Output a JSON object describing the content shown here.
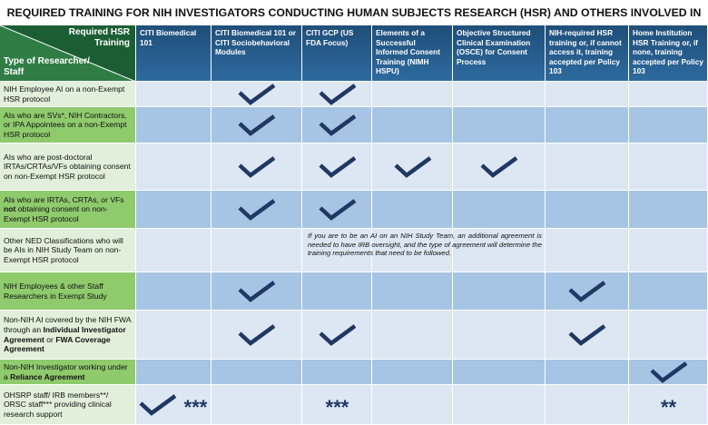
{
  "title": "REQUIRED TRAINING FOR NIH INVESTIGATORS CONDUCTING HUMAN SUBJECTS RESEARCH (HSR) AND OTHERS INVOLVED IN NIH HSR",
  "header": {
    "corner_top": "Required HSR Training",
    "corner_bottom": "Type of Researcher/ Staff",
    "columns": [
      "CITI Biomedical 101",
      "CITI Biomedical 101 or CITI Sociobehavioral Modules",
      "CITI GCP (US FDA Focus)",
      "Elements of a Successful Informed Consent Training (NIMH HSPU)",
      "Objective Structured Clinical Examination (OSCE) for Consent Process",
      "NIH-required HSR training or, if cannot access it, training accepted per Policy 103",
      "Home Institution HSR Training or, if none, training accepted per Policy 103"
    ]
  },
  "rows": [
    {
      "label": [
        {
          "text": "NIH Employee AI on a non-Exempt HSR protocol"
        }
      ],
      "checks": [
        false,
        true,
        true,
        false,
        false,
        false,
        false
      ]
    },
    {
      "label": [
        {
          "text": "AIs who are SVs*, NIH Contractors, or IPA Appointees on a non-Exempt HSR protocol"
        }
      ],
      "checks": [
        false,
        true,
        true,
        false,
        false,
        false,
        false
      ]
    },
    {
      "label": [
        {
          "text": "AIs who are post-doctoral IRTAs/CRTAs/VFs obtaining consent on non-Exempt HSR protocol"
        }
      ],
      "checks": [
        false,
        true,
        true,
        true,
        true,
        false,
        false
      ]
    },
    {
      "label": [
        {
          "text": "AIs who are IRTAs, CRTAs, or VFs "
        },
        {
          "text": "not",
          "bold": true
        },
        {
          "text": " obtaining consent on non-Exempt HSR protocol"
        }
      ],
      "checks": [
        false,
        true,
        true,
        false,
        false,
        false,
        false
      ]
    },
    {
      "label": [
        {
          "text": "Other NED Classifications who will be AIs in NIH Study Team on non-Exempt HSR protocol"
        }
      ],
      "checks": [
        false,
        false,
        false,
        false,
        false,
        false,
        false
      ],
      "note": "If you are to be an AI on an NIH Study Team, an additional agreement is needed to have IRB oversight, and the type of agreement will determine the training requirements that need to be followed."
    },
    {
      "label": [
        {
          "text": "NIH Employees & other Staff Researchers in Exempt Study"
        }
      ],
      "checks": [
        false,
        true,
        false,
        false,
        false,
        true,
        false
      ]
    },
    {
      "label": [
        {
          "text": "Non-NIH AI covered by the NIH FWA through an "
        },
        {
          "text": "Individual Investigator Agreement",
          "bold": true
        },
        {
          "text": " or "
        },
        {
          "text": "FWA Coverage Agreement",
          "bold": true
        }
      ],
      "checks": [
        false,
        true,
        true,
        false,
        false,
        true,
        false
      ]
    },
    {
      "label": [
        {
          "text": "Non-NIH Investigator working under a "
        },
        {
          "text": "Reliance Agreement",
          "bold": true
        }
      ],
      "checks": [
        false,
        false,
        false,
        false,
        false,
        false,
        true
      ]
    },
    {
      "label": [
        {
          "text": "OHSRP staff/ IRB members**/ ORSC staff*** providing clinical research support"
        }
      ],
      "checks": [
        true,
        false,
        false,
        false,
        false,
        false,
        false
      ],
      "marks": [
        "***",
        null,
        "***",
        null,
        null,
        null,
        "**"
      ]
    }
  ]
}
